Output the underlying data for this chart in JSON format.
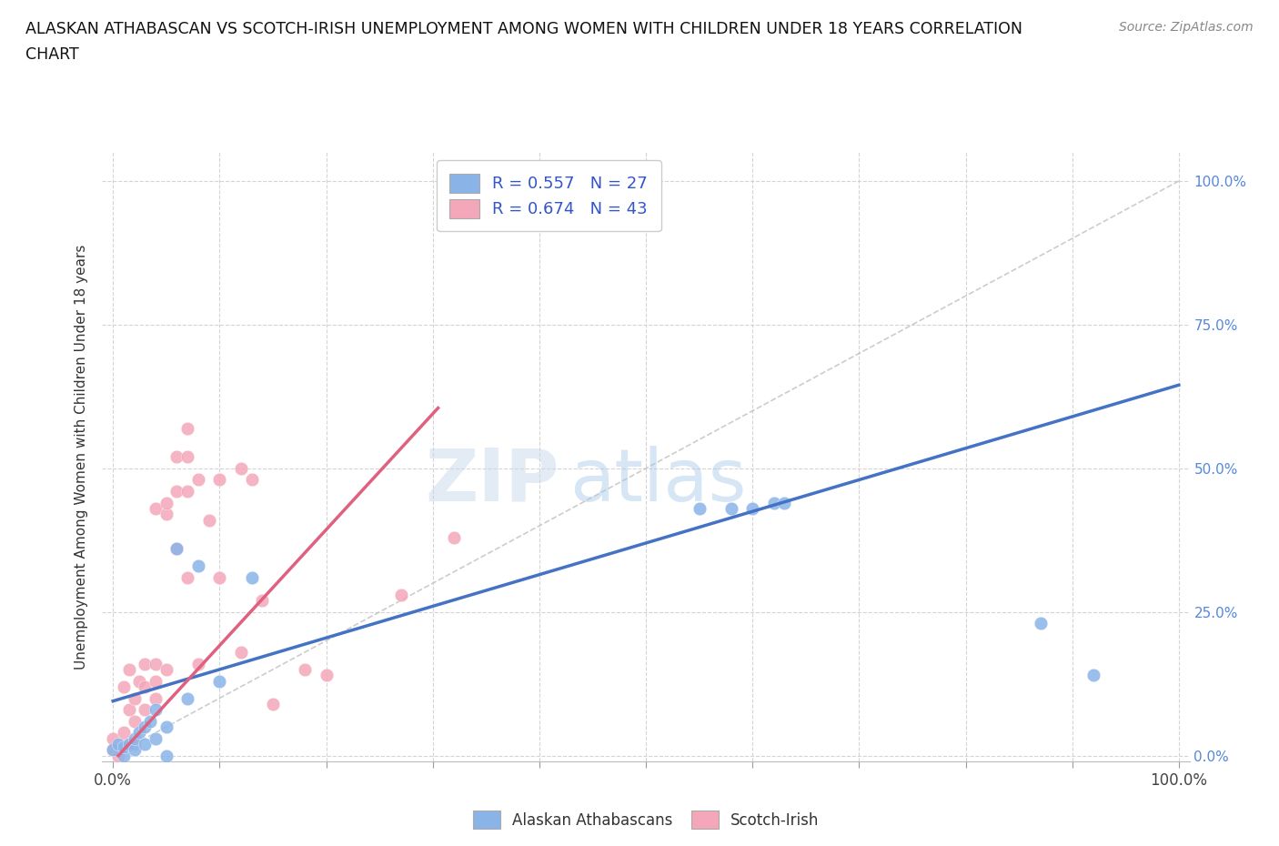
{
  "title_line1": "ALASKAN ATHABASCAN VS SCOTCH-IRISH UNEMPLOYMENT AMONG WOMEN WITH CHILDREN UNDER 18 YEARS CORRELATION",
  "title_line2": "CHART",
  "source": "Source: ZipAtlas.com",
  "ylabel": "Unemployment Among Women with Children Under 18 years",
  "r_blue": 0.557,
  "n_blue": 27,
  "r_pink": 0.674,
  "n_pink": 43,
  "blue_color": "#8ab4e8",
  "pink_color": "#f4a7b9",
  "blue_line_color": "#4472c4",
  "pink_line_color": "#e06080",
  "diag_line_color": "#c0c0c0",
  "watermark_zip": "ZIP",
  "watermark_atlas": "atlas",
  "blue_scatter_x": [
    0.0,
    0.005,
    0.01,
    0.01,
    0.015,
    0.02,
    0.02,
    0.025,
    0.03,
    0.03,
    0.035,
    0.04,
    0.04,
    0.05,
    0.05,
    0.06,
    0.07,
    0.08,
    0.1,
    0.13,
    0.55,
    0.58,
    0.6,
    0.62,
    0.63,
    0.87,
    0.92
  ],
  "blue_scatter_y": [
    0.01,
    0.02,
    0.0,
    0.015,
    0.02,
    0.01,
    0.03,
    0.04,
    0.02,
    0.05,
    0.06,
    0.03,
    0.08,
    0.0,
    0.05,
    0.36,
    0.1,
    0.33,
    0.13,
    0.31,
    0.43,
    0.43,
    0.43,
    0.44,
    0.44,
    0.23,
    0.14
  ],
  "pink_scatter_x": [
    0.0,
    0.0,
    0.005,
    0.01,
    0.01,
    0.01,
    0.015,
    0.015,
    0.02,
    0.02,
    0.02,
    0.025,
    0.03,
    0.03,
    0.03,
    0.04,
    0.04,
    0.04,
    0.04,
    0.05,
    0.05,
    0.05,
    0.06,
    0.06,
    0.06,
    0.07,
    0.07,
    0.07,
    0.07,
    0.08,
    0.08,
    0.09,
    0.1,
    0.1,
    0.12,
    0.12,
    0.13,
    0.14,
    0.15,
    0.18,
    0.2,
    0.27,
    0.32
  ],
  "pink_scatter_y": [
    0.01,
    0.03,
    0.0,
    0.02,
    0.04,
    0.12,
    0.08,
    0.15,
    0.02,
    0.06,
    0.1,
    0.13,
    0.08,
    0.12,
    0.16,
    0.1,
    0.13,
    0.16,
    0.43,
    0.15,
    0.42,
    0.44,
    0.36,
    0.46,
    0.52,
    0.46,
    0.52,
    0.57,
    0.31,
    0.16,
    0.48,
    0.41,
    0.31,
    0.48,
    0.18,
    0.5,
    0.48,
    0.27,
    0.09,
    0.15,
    0.14,
    0.28,
    0.38
  ],
  "blue_line_x": [
    0.0,
    1.0
  ],
  "blue_line_y": [
    0.095,
    0.645
  ],
  "pink_line_x": [
    0.005,
    0.305
  ],
  "pink_line_y": [
    0.0,
    0.605
  ],
  "xtick_positions": [
    0.0,
    0.1,
    0.2,
    0.3,
    0.4,
    0.5,
    0.6,
    0.7,
    0.8,
    0.9,
    1.0
  ],
  "ytick_positions": [
    0.0,
    0.25,
    0.5,
    0.75,
    1.0
  ],
  "ytick_labels_right": [
    "0.0%",
    "25.0%",
    "50.0%",
    "75.0%",
    "100.0%"
  ],
  "legend_labels": [
    "Alaskan Athabascans",
    "Scotch-Irish"
  ],
  "background_color": "#ffffff",
  "grid_color": "#d0d0d0"
}
